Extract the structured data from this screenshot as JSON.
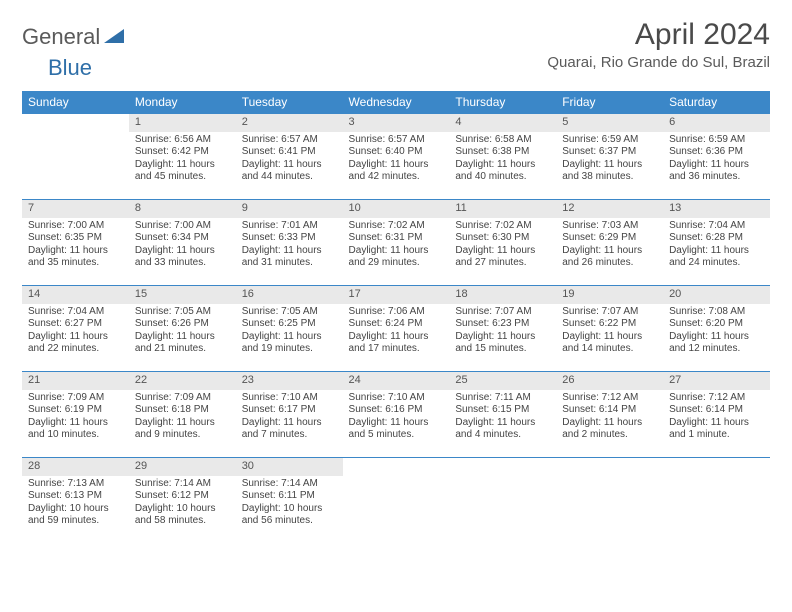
{
  "logo": {
    "part1": "General",
    "part2": "Blue"
  },
  "title": "April 2024",
  "subtitle": "Quarai, Rio Grande do Sul, Brazil",
  "colors": {
    "header_bg": "#3b87c8",
    "header_text": "#ffffff",
    "daynum_bg": "#e9e9e9",
    "row_border": "#3b87c8",
    "logo_gray": "#5a5a5a",
    "logo_blue": "#2f6fa8"
  },
  "weekdays": [
    "Sunday",
    "Monday",
    "Tuesday",
    "Wednesday",
    "Thursday",
    "Friday",
    "Saturday"
  ],
  "weeks": [
    [
      {
        "n": "",
        "lines": []
      },
      {
        "n": "1",
        "lines": [
          "Sunrise: 6:56 AM",
          "Sunset: 6:42 PM",
          "Daylight: 11 hours and 45 minutes."
        ]
      },
      {
        "n": "2",
        "lines": [
          "Sunrise: 6:57 AM",
          "Sunset: 6:41 PM",
          "Daylight: 11 hours and 44 minutes."
        ]
      },
      {
        "n": "3",
        "lines": [
          "Sunrise: 6:57 AM",
          "Sunset: 6:40 PM",
          "Daylight: 11 hours and 42 minutes."
        ]
      },
      {
        "n": "4",
        "lines": [
          "Sunrise: 6:58 AM",
          "Sunset: 6:38 PM",
          "Daylight: 11 hours and 40 minutes."
        ]
      },
      {
        "n": "5",
        "lines": [
          "Sunrise: 6:59 AM",
          "Sunset: 6:37 PM",
          "Daylight: 11 hours and 38 minutes."
        ]
      },
      {
        "n": "6",
        "lines": [
          "Sunrise: 6:59 AM",
          "Sunset: 6:36 PM",
          "Daylight: 11 hours and 36 minutes."
        ]
      }
    ],
    [
      {
        "n": "7",
        "lines": [
          "Sunrise: 7:00 AM",
          "Sunset: 6:35 PM",
          "Daylight: 11 hours and 35 minutes."
        ]
      },
      {
        "n": "8",
        "lines": [
          "Sunrise: 7:00 AM",
          "Sunset: 6:34 PM",
          "Daylight: 11 hours and 33 minutes."
        ]
      },
      {
        "n": "9",
        "lines": [
          "Sunrise: 7:01 AM",
          "Sunset: 6:33 PM",
          "Daylight: 11 hours and 31 minutes."
        ]
      },
      {
        "n": "10",
        "lines": [
          "Sunrise: 7:02 AM",
          "Sunset: 6:31 PM",
          "Daylight: 11 hours and 29 minutes."
        ]
      },
      {
        "n": "11",
        "lines": [
          "Sunrise: 7:02 AM",
          "Sunset: 6:30 PM",
          "Daylight: 11 hours and 27 minutes."
        ]
      },
      {
        "n": "12",
        "lines": [
          "Sunrise: 7:03 AM",
          "Sunset: 6:29 PM",
          "Daylight: 11 hours and 26 minutes."
        ]
      },
      {
        "n": "13",
        "lines": [
          "Sunrise: 7:04 AM",
          "Sunset: 6:28 PM",
          "Daylight: 11 hours and 24 minutes."
        ]
      }
    ],
    [
      {
        "n": "14",
        "lines": [
          "Sunrise: 7:04 AM",
          "Sunset: 6:27 PM",
          "Daylight: 11 hours and 22 minutes."
        ]
      },
      {
        "n": "15",
        "lines": [
          "Sunrise: 7:05 AM",
          "Sunset: 6:26 PM",
          "Daylight: 11 hours and 21 minutes."
        ]
      },
      {
        "n": "16",
        "lines": [
          "Sunrise: 7:05 AM",
          "Sunset: 6:25 PM",
          "Daylight: 11 hours and 19 minutes."
        ]
      },
      {
        "n": "17",
        "lines": [
          "Sunrise: 7:06 AM",
          "Sunset: 6:24 PM",
          "Daylight: 11 hours and 17 minutes."
        ]
      },
      {
        "n": "18",
        "lines": [
          "Sunrise: 7:07 AM",
          "Sunset: 6:23 PM",
          "Daylight: 11 hours and 15 minutes."
        ]
      },
      {
        "n": "19",
        "lines": [
          "Sunrise: 7:07 AM",
          "Sunset: 6:22 PM",
          "Daylight: 11 hours and 14 minutes."
        ]
      },
      {
        "n": "20",
        "lines": [
          "Sunrise: 7:08 AM",
          "Sunset: 6:20 PM",
          "Daylight: 11 hours and 12 minutes."
        ]
      }
    ],
    [
      {
        "n": "21",
        "lines": [
          "Sunrise: 7:09 AM",
          "Sunset: 6:19 PM",
          "Daylight: 11 hours and 10 minutes."
        ]
      },
      {
        "n": "22",
        "lines": [
          "Sunrise: 7:09 AM",
          "Sunset: 6:18 PM",
          "Daylight: 11 hours and 9 minutes."
        ]
      },
      {
        "n": "23",
        "lines": [
          "Sunrise: 7:10 AM",
          "Sunset: 6:17 PM",
          "Daylight: 11 hours and 7 minutes."
        ]
      },
      {
        "n": "24",
        "lines": [
          "Sunrise: 7:10 AM",
          "Sunset: 6:16 PM",
          "Daylight: 11 hours and 5 minutes."
        ]
      },
      {
        "n": "25",
        "lines": [
          "Sunrise: 7:11 AM",
          "Sunset: 6:15 PM",
          "Daylight: 11 hours and 4 minutes."
        ]
      },
      {
        "n": "26",
        "lines": [
          "Sunrise: 7:12 AM",
          "Sunset: 6:14 PM",
          "Daylight: 11 hours and 2 minutes."
        ]
      },
      {
        "n": "27",
        "lines": [
          "Sunrise: 7:12 AM",
          "Sunset: 6:14 PM",
          "Daylight: 11 hours and 1 minute."
        ]
      }
    ],
    [
      {
        "n": "28",
        "lines": [
          "Sunrise: 7:13 AM",
          "Sunset: 6:13 PM",
          "Daylight: 10 hours and 59 minutes."
        ]
      },
      {
        "n": "29",
        "lines": [
          "Sunrise: 7:14 AM",
          "Sunset: 6:12 PM",
          "Daylight: 10 hours and 58 minutes."
        ]
      },
      {
        "n": "30",
        "lines": [
          "Sunrise: 7:14 AM",
          "Sunset: 6:11 PM",
          "Daylight: 10 hours and 56 minutes."
        ]
      },
      {
        "n": "",
        "lines": []
      },
      {
        "n": "",
        "lines": []
      },
      {
        "n": "",
        "lines": []
      },
      {
        "n": "",
        "lines": []
      }
    ]
  ]
}
